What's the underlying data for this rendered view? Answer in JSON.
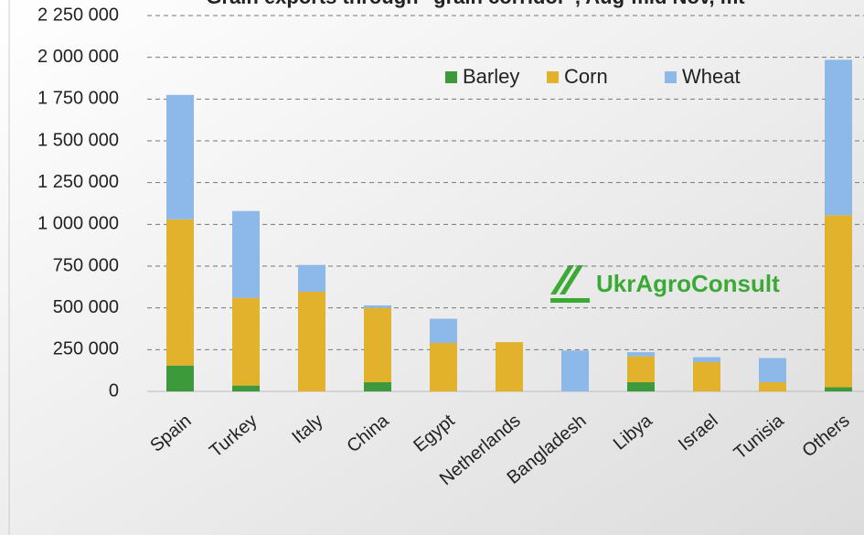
{
  "chart_data": {
    "type": "bar",
    "stacked": true,
    "title": "Grain exports through \"grain corridor\", Aug-mid Nov, mt",
    "watermark": "UkrAgroConsult",
    "categories": [
      "Spain",
      "Turkey",
      "Italy",
      "China",
      "Egypt",
      "Netherlands",
      "Bangladesh",
      "Libya",
      "Israel",
      "Tunisia",
      "Others"
    ],
    "series": [
      {
        "name": "Barley",
        "color": "#3c9a3c",
        "values": [
          155000,
          35000,
          0,
          55000,
          0,
          0,
          0,
          55000,
          0,
          0,
          25000
        ]
      },
      {
        "name": "Corn",
        "color": "#e3b22c",
        "values": [
          875000,
          525000,
          597000,
          445000,
          290000,
          295000,
          0,
          155000,
          175000,
          55000,
          1030000
        ]
      },
      {
        "name": "Wheat",
        "color": "#8cb8ea",
        "values": [
          745000,
          520000,
          160000,
          15000,
          145000,
          0,
          245000,
          25000,
          30000,
          145000,
          930000
        ]
      }
    ],
    "ylim": [
      0,
      2250000
    ],
    "yticks": [
      0,
      {
        "value": 250000,
        "label": "250 000"
      },
      {
        "value": 500000,
        "label": "500 000"
      },
      {
        "value": 750000,
        "label": "750 000"
      },
      {
        "value": 1000000,
        "label": "1 000 000"
      },
      {
        "value": 1250000,
        "label": "1 250 000"
      },
      {
        "value": 1500000,
        "label": "1 500 000"
      },
      {
        "value": 1750000,
        "label": "1 750 000"
      },
      {
        "value": 2000000,
        "label": "2 000 000"
      },
      {
        "value": 2250000,
        "label": "2 250 000"
      }
    ],
    "grid": true,
    "legend": "top"
  }
}
